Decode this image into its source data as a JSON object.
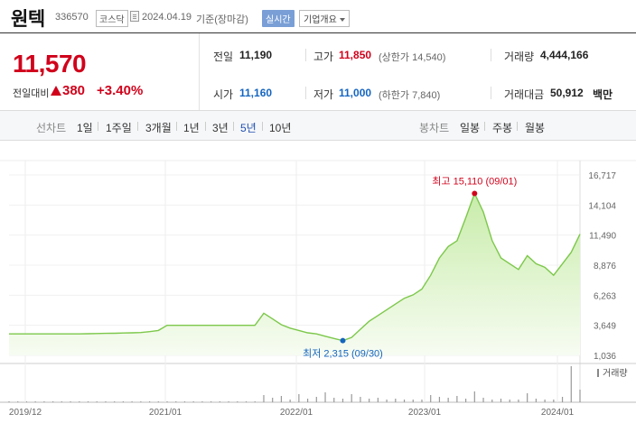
{
  "header": {
    "name": "원텍",
    "code": "336570",
    "market": "코스닥",
    "date": "2024.04.19",
    "date_suffix": "기준(장마감)",
    "realtime": "실시간",
    "company_info": "기업개요"
  },
  "price": {
    "current": "11,570",
    "prev_label": "전일대비",
    "change": "380",
    "change_pct": "+3.40%"
  },
  "stats": {
    "prev_label": "전일",
    "prev_value": "11,190",
    "high_label": "고가",
    "high_value": "11,850",
    "upper_limit": "(상한가 14,540)",
    "volume_label": "거래량",
    "volume_value": "4,444,166",
    "open_label": "시가",
    "open_value": "11,160",
    "low_label": "저가",
    "low_value": "11,000",
    "lower_limit": "(하한가 7,840)",
    "amount_label": "거래대금",
    "amount_value": "50,912",
    "amount_unit": "백만"
  },
  "period_bar": {
    "line_label": "선차트",
    "line_items": [
      "1일",
      "1주일",
      "3개월",
      "1년",
      "3년",
      "5년",
      "10년"
    ],
    "active": "5년",
    "candle_label": "봉차트",
    "candle_items": [
      "일봉",
      "주봉",
      "월봉"
    ]
  },
  "chart_data": {
    "type": "area",
    "y_ticks": [
      "16,717",
      "14,104",
      "11,490",
      "8,876",
      "6,263",
      "3,649",
      "1,036"
    ],
    "ylim": [
      1036,
      16717
    ],
    "x_ticks": [
      "2019/12",
      "2021/01",
      "2022/01",
      "2023/01",
      "2024/01"
    ],
    "max_label": "최고 15,110 (09/01)",
    "min_label": "최저 2,315 (09/30)",
    "volume_label": "거래량",
    "line_color": "#7cc84a",
    "fill_color": "#dff5cc",
    "series": [
      {
        "values": [
          2900,
          2900,
          2900,
          2900,
          2900,
          2900,
          2900,
          2900,
          2900,
          2920,
          2930,
          2950,
          2960,
          2980,
          3000,
          3020,
          3100,
          3200,
          3650,
          3650,
          3650,
          3650,
          3650,
          3650,
          3650,
          3650,
          3650,
          3650,
          3650,
          4700,
          4200,
          3700,
          3400,
          3200,
          3000,
          2900,
          2700,
          2500,
          2315,
          2600,
          3300,
          4000,
          4500,
          5000,
          5500,
          6000,
          6300,
          6800,
          8000,
          9500,
          10500,
          11000,
          13000,
          15110,
          13500,
          11000,
          9500,
          9000,
          8500,
          9700,
          9000,
          8700,
          8000,
          9000,
          10000,
          11570
        ]
      }
    ],
    "volume": [
      1,
      1,
      1,
      1,
      1,
      1,
      1,
      1,
      1,
      1,
      1,
      1,
      1,
      1,
      1,
      1,
      1,
      1,
      1,
      1,
      1,
      1,
      1,
      1,
      1,
      1,
      1,
      1,
      1,
      8,
      5,
      7,
      3,
      9,
      4,
      6,
      11,
      5,
      4,
      9,
      6,
      4,
      5,
      3,
      4,
      3,
      3,
      3,
      8,
      6,
      5,
      7,
      4,
      12,
      5,
      3,
      4,
      3,
      3,
      10,
      4,
      3,
      3,
      6,
      40,
      14
    ]
  }
}
